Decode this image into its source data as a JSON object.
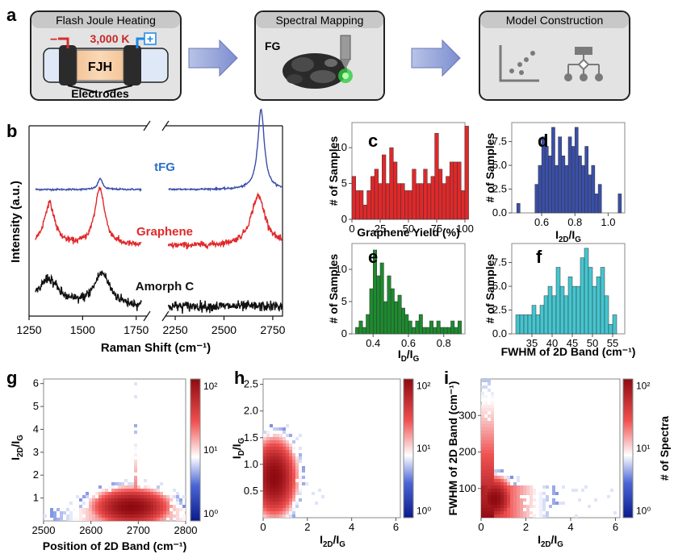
{
  "panel_labels": {
    "a": "a",
    "b": "b",
    "c": "c",
    "d": "d",
    "e": "e",
    "f": "f",
    "g": "g",
    "h": "h",
    "i": "i"
  },
  "workflow": {
    "step1_title": "Flash Joule Heating",
    "step1_temp": "3,000 K",
    "step1_core": "FJH",
    "step1_electrodes": "Electrodes",
    "step1_minus": "−",
    "step1_plus": "+",
    "step2_title": "Spectral Mapping",
    "step2_label": "FG",
    "step3_title": "Model Construction"
  },
  "colors": {
    "blue": "#3a4fa8",
    "red": "#e0282a",
    "green": "#1d8a2e",
    "cyan": "#45c5cf",
    "black": "#111111",
    "tfg_blue": "#2a6fc9"
  },
  "chart_data": [
    {
      "id": "b",
      "type": "line",
      "xlabel": "Raman Shift (cm⁻¹)",
      "ylabel": "Intensity (a.u.)",
      "xticks": [
        "1250",
        "1500",
        "1750",
        "2250",
        "2500",
        "2750"
      ],
      "xlim_left": [
        1250,
        1800
      ],
      "xlim_right": [
        2200,
        2800
      ],
      "series": [
        {
          "name": "tFG",
          "peaks": [
            {
              "x": 1582,
              "h": 0.14,
              "w": 12
            },
            {
              "x": 2690,
              "h": 1.0,
              "w": 20
            }
          ],
          "noise": 0.01
        },
        {
          "name": "Graphene",
          "peaks": [
            {
              "x": 1345,
              "h": 0.55,
              "w": 30
            },
            {
              "x": 1580,
              "h": 0.75,
              "w": 28
            },
            {
              "x": 2675,
              "h": 0.65,
              "w": 45
            }
          ],
          "noise": 0.04
        },
        {
          "name": "Amorph C",
          "peaks": [
            {
              "x": 1340,
              "h": 0.42,
              "w": 55
            },
            {
              "x": 1590,
              "h": 0.5,
              "w": 45
            }
          ],
          "noise": 0.08
        }
      ]
    },
    {
      "id": "c",
      "type": "bar",
      "xlabel": "Graphene Yield (%)",
      "ylabel": "# of Samples",
      "xticks": [
        "0",
        "25",
        "50",
        "75",
        "100"
      ],
      "yticks": [
        "0",
        "5",
        "10"
      ],
      "xlim": [
        0,
        100
      ],
      "ylim": [
        0,
        13.5
      ],
      "bin_start": 0,
      "bin_width": 3.33,
      "values": [
        6,
        4,
        4,
        2,
        4,
        6,
        7,
        5,
        9,
        5,
        10,
        8,
        5,
        5,
        4,
        4,
        7,
        5,
        5,
        7,
        5,
        6,
        12,
        7,
        5,
        6,
        8,
        8,
        8,
        4,
        13
      ],
      "color": "#e0282a"
    },
    {
      "id": "d",
      "type": "bar",
      "xlabel": "I2D/IG",
      "ylabel": "# of Samples",
      "xticks": [
        "0.6",
        "0.8",
        "1.0"
      ],
      "yticks": [
        "0.0",
        "2.5",
        "5.0",
        "7.5"
      ],
      "xlim": [
        0.42,
        1.1
      ],
      "ylim": [
        0,
        9.5
      ],
      "bins": [
        [
          0.45,
          1
        ],
        [
          0.56,
          3
        ],
        [
          0.58,
          5
        ],
        [
          0.6,
          8
        ],
        [
          0.62,
          7
        ],
        [
          0.64,
          6
        ],
        [
          0.66,
          9
        ],
        [
          0.68,
          5
        ],
        [
          0.7,
          8
        ],
        [
          0.72,
          6
        ],
        [
          0.74,
          5
        ],
        [
          0.76,
          8
        ],
        [
          0.78,
          7
        ],
        [
          0.8,
          9
        ],
        [
          0.82,
          6
        ],
        [
          0.84,
          5
        ],
        [
          0.86,
          7
        ],
        [
          0.88,
          4
        ],
        [
          0.9,
          5
        ],
        [
          0.92,
          2
        ],
        [
          0.94,
          3
        ],
        [
          1.06,
          2
        ]
      ],
      "bin_width": 0.02,
      "color": "#3a4fa8"
    },
    {
      "id": "e",
      "type": "bar",
      "xlabel": "ID/IG",
      "ylabel": "# of Samples",
      "xticks": [
        "0.4",
        "0.6",
        "0.8"
      ],
      "yticks": [
        "0",
        "5",
        "10"
      ],
      "xlim": [
        0.28,
        0.92
      ],
      "ylim": [
        0,
        14
      ],
      "bin_start": 0.3,
      "bin_width": 0.02,
      "values": [
        1,
        2,
        1,
        3,
        7,
        13,
        9,
        11,
        5,
        9,
        7,
        5,
        6,
        4,
        3,
        2,
        1,
        2,
        3,
        1,
        1,
        2,
        1,
        2,
        1,
        1,
        1,
        2,
        1,
        2
      ],
      "color": "#1d8a2e"
    },
    {
      "id": "f",
      "type": "bar",
      "xlabel": "FWHM of 2D Band (cm⁻¹)",
      "ylabel": "# of Samples",
      "xticks": [
        "35",
        "40",
        "45",
        "50",
        "55"
      ],
      "yticks": [
        "0.0",
        "2.5",
        "5.0",
        "7.5"
      ],
      "xlim": [
        30,
        58
      ],
      "ylim": [
        0,
        9.5
      ],
      "bin_start": 31,
      "bin_width": 1,
      "values": [
        2,
        2,
        2,
        2,
        3,
        2,
        3,
        4,
        5,
        4,
        7,
        5,
        4,
        6,
        5,
        5,
        8,
        9,
        7,
        5,
        6,
        7,
        4,
        1,
        2
      ],
      "color": "#45c5cf"
    },
    {
      "id": "g",
      "type": "heatmap",
      "xlabel": "Position of 2D Band (cm⁻¹)",
      "ylabel": "I2D/IG",
      "xticks": [
        "2500",
        "2600",
        "2700",
        "2800"
      ],
      "yticks": [
        "1",
        "2",
        "3",
        "4",
        "5",
        "6"
      ],
      "xlim": [
        2500,
        2800
      ],
      "ylim": [
        0,
        6.2
      ],
      "colorbar_ticks": [
        "10⁰",
        "10¹",
        "10²"
      ],
      "colorbar_label": "",
      "cluster": {
        "cx": 2685,
        "cy": 0.6,
        "sx": 40,
        "sy": 0.4,
        "spread_x": 120
      }
    },
    {
      "id": "h",
      "type": "heatmap",
      "xlabel": "I2D/IG",
      "ylabel": "ID/IG",
      "xticks": [
        "0",
        "2",
        "4",
        "6"
      ],
      "yticks": [
        "0.5",
        "1.0",
        "1.5",
        "2.0",
        "2.5"
      ],
      "xlim": [
        0,
        6.2
      ],
      "ylim": [
        0,
        2.6
      ],
      "colorbar_ticks": [
        "10⁰",
        "10¹",
        "10²"
      ],
      "colorbar_label": "",
      "cluster": {
        "cx": 0.5,
        "cy": 0.75,
        "sx": 0.5,
        "sy": 0.35
      }
    },
    {
      "id": "i",
      "type": "heatmap",
      "xlabel": "I2D/IG",
      "ylabel": "FWHM of 2D Band (cm⁻¹)",
      "xticks": [
        "0",
        "2",
        "4",
        "6"
      ],
      "yticks": [
        "100",
        "200",
        "300"
      ],
      "xlim": [
        0,
        6.2
      ],
      "ylim": [
        20,
        400
      ],
      "colorbar_ticks": [
        "10⁰",
        "10¹",
        "10²"
      ],
      "colorbar_label": "# of Spectra",
      "cluster": {
        "cx": 0.6,
        "cy": 70,
        "sx": 0.4,
        "sy": 30
      }
    }
  ]
}
